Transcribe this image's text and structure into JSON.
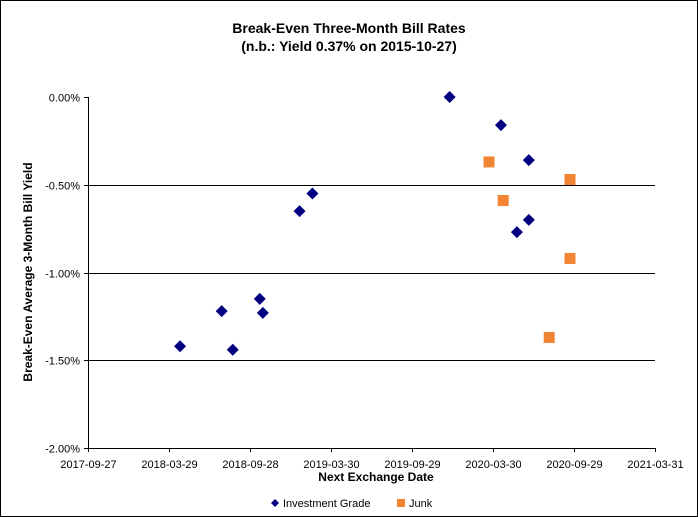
{
  "chart_data": {
    "type": "scatter",
    "title": "Break-Even Three-Month Bill Rates",
    "subtitle": "(n.b.: Yield  0.37% on 2015-10-27)",
    "xlabel": "Next Exchange Date",
    "ylabel": "Break-Even Average 3-Month  Bill Yield",
    "xlim": [
      "2017-09-27",
      "2021-03-31"
    ],
    "ylim": [
      -2.0,
      0.0
    ],
    "x_ticks": [
      "2017-09-27",
      "2018-03-29",
      "2018-09-28",
      "2019-03-30",
      "2019-09-29",
      "2020-03-30",
      "2020-09-29",
      "2021-03-31"
    ],
    "y_ticks": [
      0.0,
      -0.5,
      -1.0,
      -1.5,
      -2.0
    ],
    "y_tick_labels": [
      "0.00%",
      "-0.50%",
      "-1.00%",
      "-1.50%",
      "-2.00%"
    ],
    "grid": "horizontal",
    "legend_position": "bottom",
    "series": [
      {
        "name": "Investment Grade",
        "marker": "diamond",
        "color": "#000080",
        "points": [
          [
            "2018-04-23",
            -1.42
          ],
          [
            "2018-07-26",
            -1.22
          ],
          [
            "2018-08-20",
            -1.44
          ],
          [
            "2018-10-20",
            -1.15
          ],
          [
            "2018-10-27",
            -1.23
          ],
          [
            "2019-01-18",
            -0.65
          ],
          [
            "2019-02-16",
            -0.55
          ],
          [
            "2019-12-23",
            0.0
          ],
          [
            "2020-04-17",
            -0.16
          ],
          [
            "2020-05-23",
            -0.77
          ],
          [
            "2020-06-19",
            -0.7
          ],
          [
            "2020-06-19",
            -0.36
          ]
        ]
      },
      {
        "name": "Junk",
        "marker": "square",
        "color": "#F28534",
        "points": [
          [
            "2020-03-21",
            -0.37
          ],
          [
            "2020-04-22",
            -0.59
          ],
          [
            "2020-08-04",
            -1.37
          ],
          [
            "2020-09-20",
            -0.47
          ],
          [
            "2020-09-20",
            -0.92
          ]
        ]
      }
    ]
  }
}
